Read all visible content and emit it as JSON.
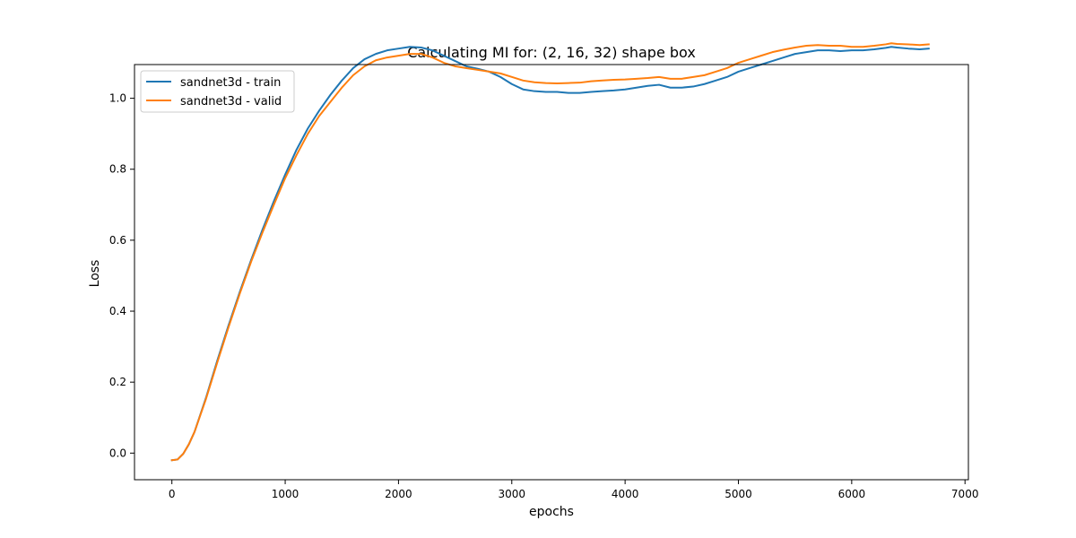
{
  "chart_data": {
    "type": "line",
    "title": "Calculating MI for: (2, 16, 32) shape box",
    "xlabel": "epochs",
    "ylabel": "Loss",
    "xlim": [
      -330,
      7030
    ],
    "ylim": [
      -0.075,
      1.095
    ],
    "x_ticks": [
      0,
      1000,
      2000,
      3000,
      4000,
      5000,
      6000,
      7000
    ],
    "x_tick_labels": [
      "0",
      "1000",
      "2000",
      "3000",
      "4000",
      "5000",
      "6000",
      "7000"
    ],
    "y_ticks": [
      0.0,
      0.2,
      0.4,
      0.6,
      0.8,
      1.0
    ],
    "y_tick_labels": [
      "0.0",
      "0.2",
      "0.4",
      "0.6",
      "0.8",
      "1.0"
    ],
    "grid": false,
    "legend_position": "upper-left",
    "series": [
      {
        "name": "sandnet3d - train",
        "color": "#1f77b4",
        "x": [
          0,
          50,
          100,
          150,
          200,
          300,
          400,
          500,
          600,
          700,
          800,
          900,
          1000,
          1100,
          1200,
          1300,
          1400,
          1500,
          1600,
          1700,
          1800,
          1900,
          2000,
          2100,
          2200,
          2300,
          2400,
          2500,
          2600,
          2700,
          2800,
          2900,
          3000,
          3100,
          3200,
          3300,
          3400,
          3500,
          3600,
          3700,
          3800,
          3900,
          4000,
          4100,
          4200,
          4300,
          4400,
          4500,
          4600,
          4700,
          4800,
          4900,
          5000,
          5100,
          5200,
          5300,
          5400,
          5500,
          5600,
          5700,
          5800,
          5900,
          6000,
          6100,
          6200,
          6300,
          6350,
          6400,
          6500,
          6600,
          6680
        ],
        "y": [
          -0.02,
          -0.018,
          -0.002,
          0.025,
          0.06,
          0.155,
          0.26,
          0.36,
          0.455,
          0.545,
          0.63,
          0.71,
          0.785,
          0.855,
          0.915,
          0.965,
          1.01,
          1.05,
          1.085,
          1.11,
          1.125,
          1.135,
          1.14,
          1.145,
          1.143,
          1.135,
          1.12,
          1.105,
          1.09,
          1.083,
          1.075,
          1.06,
          1.04,
          1.025,
          1.02,
          1.018,
          1.018,
          1.015,
          1.015,
          1.018,
          1.02,
          1.022,
          1.025,
          1.03,
          1.035,
          1.038,
          1.03,
          1.03,
          1.033,
          1.04,
          1.05,
          1.06,
          1.075,
          1.085,
          1.095,
          1.105,
          1.115,
          1.125,
          1.13,
          1.135,
          1.135,
          1.133,
          1.135,
          1.135,
          1.138,
          1.142,
          1.145,
          1.143,
          1.14,
          1.138,
          1.14
        ]
      },
      {
        "name": "sandnet3d - valid",
        "color": "#ff7f0e",
        "x": [
          0,
          50,
          100,
          150,
          200,
          300,
          400,
          500,
          600,
          700,
          800,
          900,
          1000,
          1100,
          1200,
          1300,
          1400,
          1500,
          1600,
          1700,
          1800,
          1900,
          2000,
          2100,
          2200,
          2300,
          2400,
          2500,
          2600,
          2700,
          2800,
          2900,
          3000,
          3100,
          3200,
          3300,
          3400,
          3500,
          3600,
          3700,
          3800,
          3900,
          4000,
          4100,
          4200,
          4300,
          4400,
          4500,
          4600,
          4700,
          4800,
          4900,
          5000,
          5100,
          5200,
          5300,
          5400,
          5500,
          5600,
          5700,
          5800,
          5900,
          6000,
          6100,
          6200,
          6300,
          6350,
          6400,
          6500,
          6600,
          6680
        ],
        "y": [
          -0.02,
          -0.018,
          -0.002,
          0.025,
          0.06,
          0.152,
          0.255,
          0.355,
          0.45,
          0.54,
          0.622,
          0.7,
          0.775,
          0.84,
          0.9,
          0.95,
          0.99,
          1.03,
          1.065,
          1.09,
          1.107,
          1.115,
          1.12,
          1.125,
          1.125,
          1.115,
          1.1,
          1.09,
          1.085,
          1.08,
          1.075,
          1.07,
          1.06,
          1.05,
          1.045,
          1.043,
          1.042,
          1.043,
          1.044,
          1.048,
          1.05,
          1.052,
          1.053,
          1.055,
          1.057,
          1.06,
          1.055,
          1.055,
          1.06,
          1.065,
          1.075,
          1.085,
          1.1,
          1.11,
          1.12,
          1.13,
          1.137,
          1.143,
          1.148,
          1.15,
          1.148,
          1.148,
          1.145,
          1.145,
          1.148,
          1.152,
          1.155,
          1.153,
          1.152,
          1.15,
          1.152
        ]
      }
    ]
  }
}
